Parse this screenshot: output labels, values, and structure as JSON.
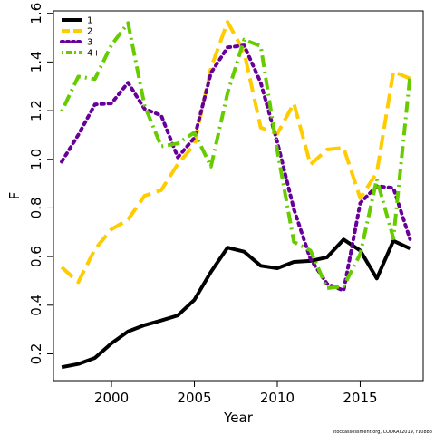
{
  "chart_data": {
    "type": "line",
    "xlabel": "Year",
    "ylabel": "F",
    "xlim": [
      1996.5,
      2018.8
    ],
    "ylim": [
      0.09,
      1.61
    ],
    "x_ticks": [
      2000,
      2005,
      2010,
      2015
    ],
    "x_tick_labels": [
      "2000",
      "2005",
      "2010",
      "2015"
    ],
    "y_ticks": [
      0.2,
      0.4,
      0.6,
      0.8,
      1.0,
      1.2,
      1.4,
      1.6
    ],
    "y_tick_labels": [
      "0.2",
      "0.4",
      "0.6",
      "0.8",
      "1.0",
      "1.2",
      "1.4",
      "1.6"
    ],
    "legend_position": "top-left",
    "grid": false,
    "x": [
      1997,
      1998,
      1999,
      2000,
      2001,
      2002,
      2003,
      2004,
      2005,
      2006,
      2007,
      2008,
      2009,
      2010,
      2011,
      2012,
      2013,
      2014,
      2015,
      2016,
      2017,
      2018
    ],
    "series": [
      {
        "name": "1",
        "color": "#000000",
        "dash": "solid",
        "values": [
          0.145,
          0.158,
          0.183,
          0.243,
          0.292,
          0.318,
          0.337,
          0.358,
          0.422,
          0.537,
          0.637,
          0.62,
          0.562,
          0.552,
          0.578,
          0.582,
          0.597,
          0.67,
          0.625,
          0.51,
          0.665,
          0.633
        ]
      },
      {
        "name": "2",
        "color": "#FFCC00",
        "dash": "long",
        "values": [
          0.556,
          0.495,
          0.63,
          0.712,
          0.752,
          0.85,
          0.873,
          0.98,
          1.06,
          1.375,
          1.565,
          1.44,
          1.13,
          1.105,
          1.23,
          0.978,
          1.04,
          1.048,
          0.84,
          0.945,
          1.36,
          1.332
        ]
      },
      {
        "name": "3",
        "color": "#660099",
        "dash": "dotted",
        "values": [
          0.99,
          1.1,
          1.225,
          1.23,
          1.315,
          1.207,
          1.18,
          1.008,
          1.088,
          1.355,
          1.46,
          1.468,
          1.315,
          1.07,
          0.795,
          0.59,
          0.488,
          0.46,
          0.82,
          0.89,
          0.882,
          0.672
        ]
      },
      {
        "name": "4+",
        "color": "#66CC00",
        "dash": "dashdot",
        "values": [
          1.197,
          1.34,
          1.33,
          1.47,
          1.56,
          1.22,
          1.053,
          1.065,
          1.11,
          0.97,
          1.272,
          1.492,
          1.465,
          1.035,
          0.66,
          0.625,
          0.47,
          0.478,
          0.61,
          0.918,
          0.675,
          1.34
        ]
      }
    ]
  },
  "footnote": "stockassessment.org, CODKAT2019, r10888"
}
